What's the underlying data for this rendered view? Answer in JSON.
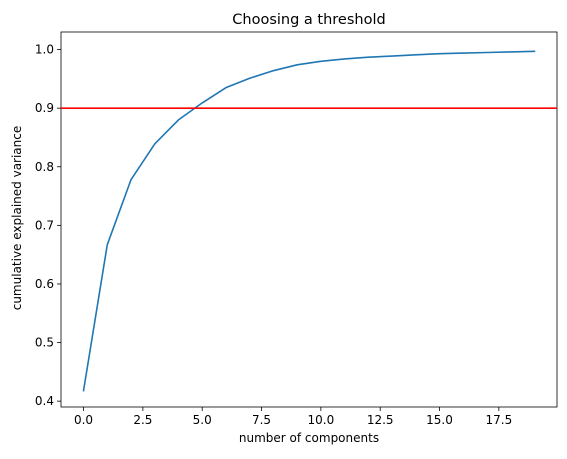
{
  "chart_data": {
    "type": "line",
    "title": "Choosing a threshold",
    "xlabel": "number of components",
    "ylabel": "cumulative explained variance",
    "xlim": [
      -0.95,
      19.95
    ],
    "ylim": [
      0.39,
      1.03
    ],
    "xticks": [
      0.0,
      2.5,
      5.0,
      7.5,
      10.0,
      12.5,
      15.0,
      17.5
    ],
    "xtick_labels": [
      "0.0",
      "2.5",
      "5.0",
      "7.5",
      "10.0",
      "12.5",
      "15.0",
      "17.5"
    ],
    "yticks": [
      0.4,
      0.5,
      0.6,
      0.7,
      0.8,
      0.9,
      1.0
    ],
    "ytick_labels": [
      "0.4",
      "0.5",
      "0.6",
      "0.7",
      "0.8",
      "0.9",
      "1.0"
    ],
    "grid": false,
    "series": [
      {
        "color": "#1f77b4",
        "x": [
          0,
          1,
          2,
          3,
          4,
          5,
          6,
          7,
          8,
          9,
          10,
          11,
          12,
          13,
          14,
          15,
          16,
          17,
          18,
          19
        ],
        "y": [
          0.418,
          0.667,
          0.778,
          0.839,
          0.88,
          0.909,
          0.935,
          0.951,
          0.964,
          0.974,
          0.98,
          0.984,
          0.987,
          0.989,
          0.991,
          0.993,
          0.994,
          0.995,
          0.996,
          0.997
        ]
      }
    ],
    "reference_lines": [
      {
        "orientation": "horizontal",
        "y": 0.9,
        "color": "#ff0000"
      }
    ]
  }
}
